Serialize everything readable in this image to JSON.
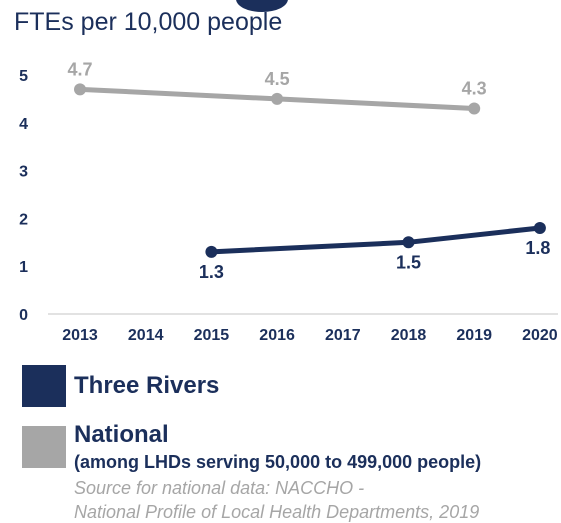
{
  "title": "FTEs per 10,000 people",
  "chart_data": {
    "type": "line",
    "title": "FTEs per 10,000 people",
    "categories": [
      "2013",
      "2014",
      "2015",
      "2016",
      "2017",
      "2018",
      "2019",
      "2020"
    ],
    "ylim": [
      0,
      5
    ],
    "yticks": [
      "0",
      "1",
      "2",
      "3",
      "4",
      "5"
    ],
    "grid": false,
    "series": [
      {
        "name": "National",
        "color": "#a6a6a6",
        "x": [
          "2013",
          "2016",
          "2019"
        ],
        "values": [
          4.7,
          4.5,
          4.3
        ],
        "labels": [
          "4.7",
          "4.5",
          "4.3"
        ]
      },
      {
        "name": "Three Rivers",
        "color": "#1b2f5b",
        "x": [
          "2015",
          "2018",
          "2020"
        ],
        "values": [
          1.3,
          1.5,
          1.8
        ],
        "labels": [
          "1.3",
          "1.5",
          "1.8"
        ]
      }
    ]
  },
  "legend": {
    "three_rivers": "Three Rivers",
    "national": "National",
    "national_sub": "(among LHDs serving 50,000 to 499,000 people)"
  },
  "source": {
    "line1": "Source for national data: NACCHO -",
    "line2": "National Profile of Local Health Departments, 2019"
  },
  "colors": {
    "navy": "#1b2f5b",
    "gray": "#a6a6a6",
    "axis": "#d9d9d9"
  }
}
